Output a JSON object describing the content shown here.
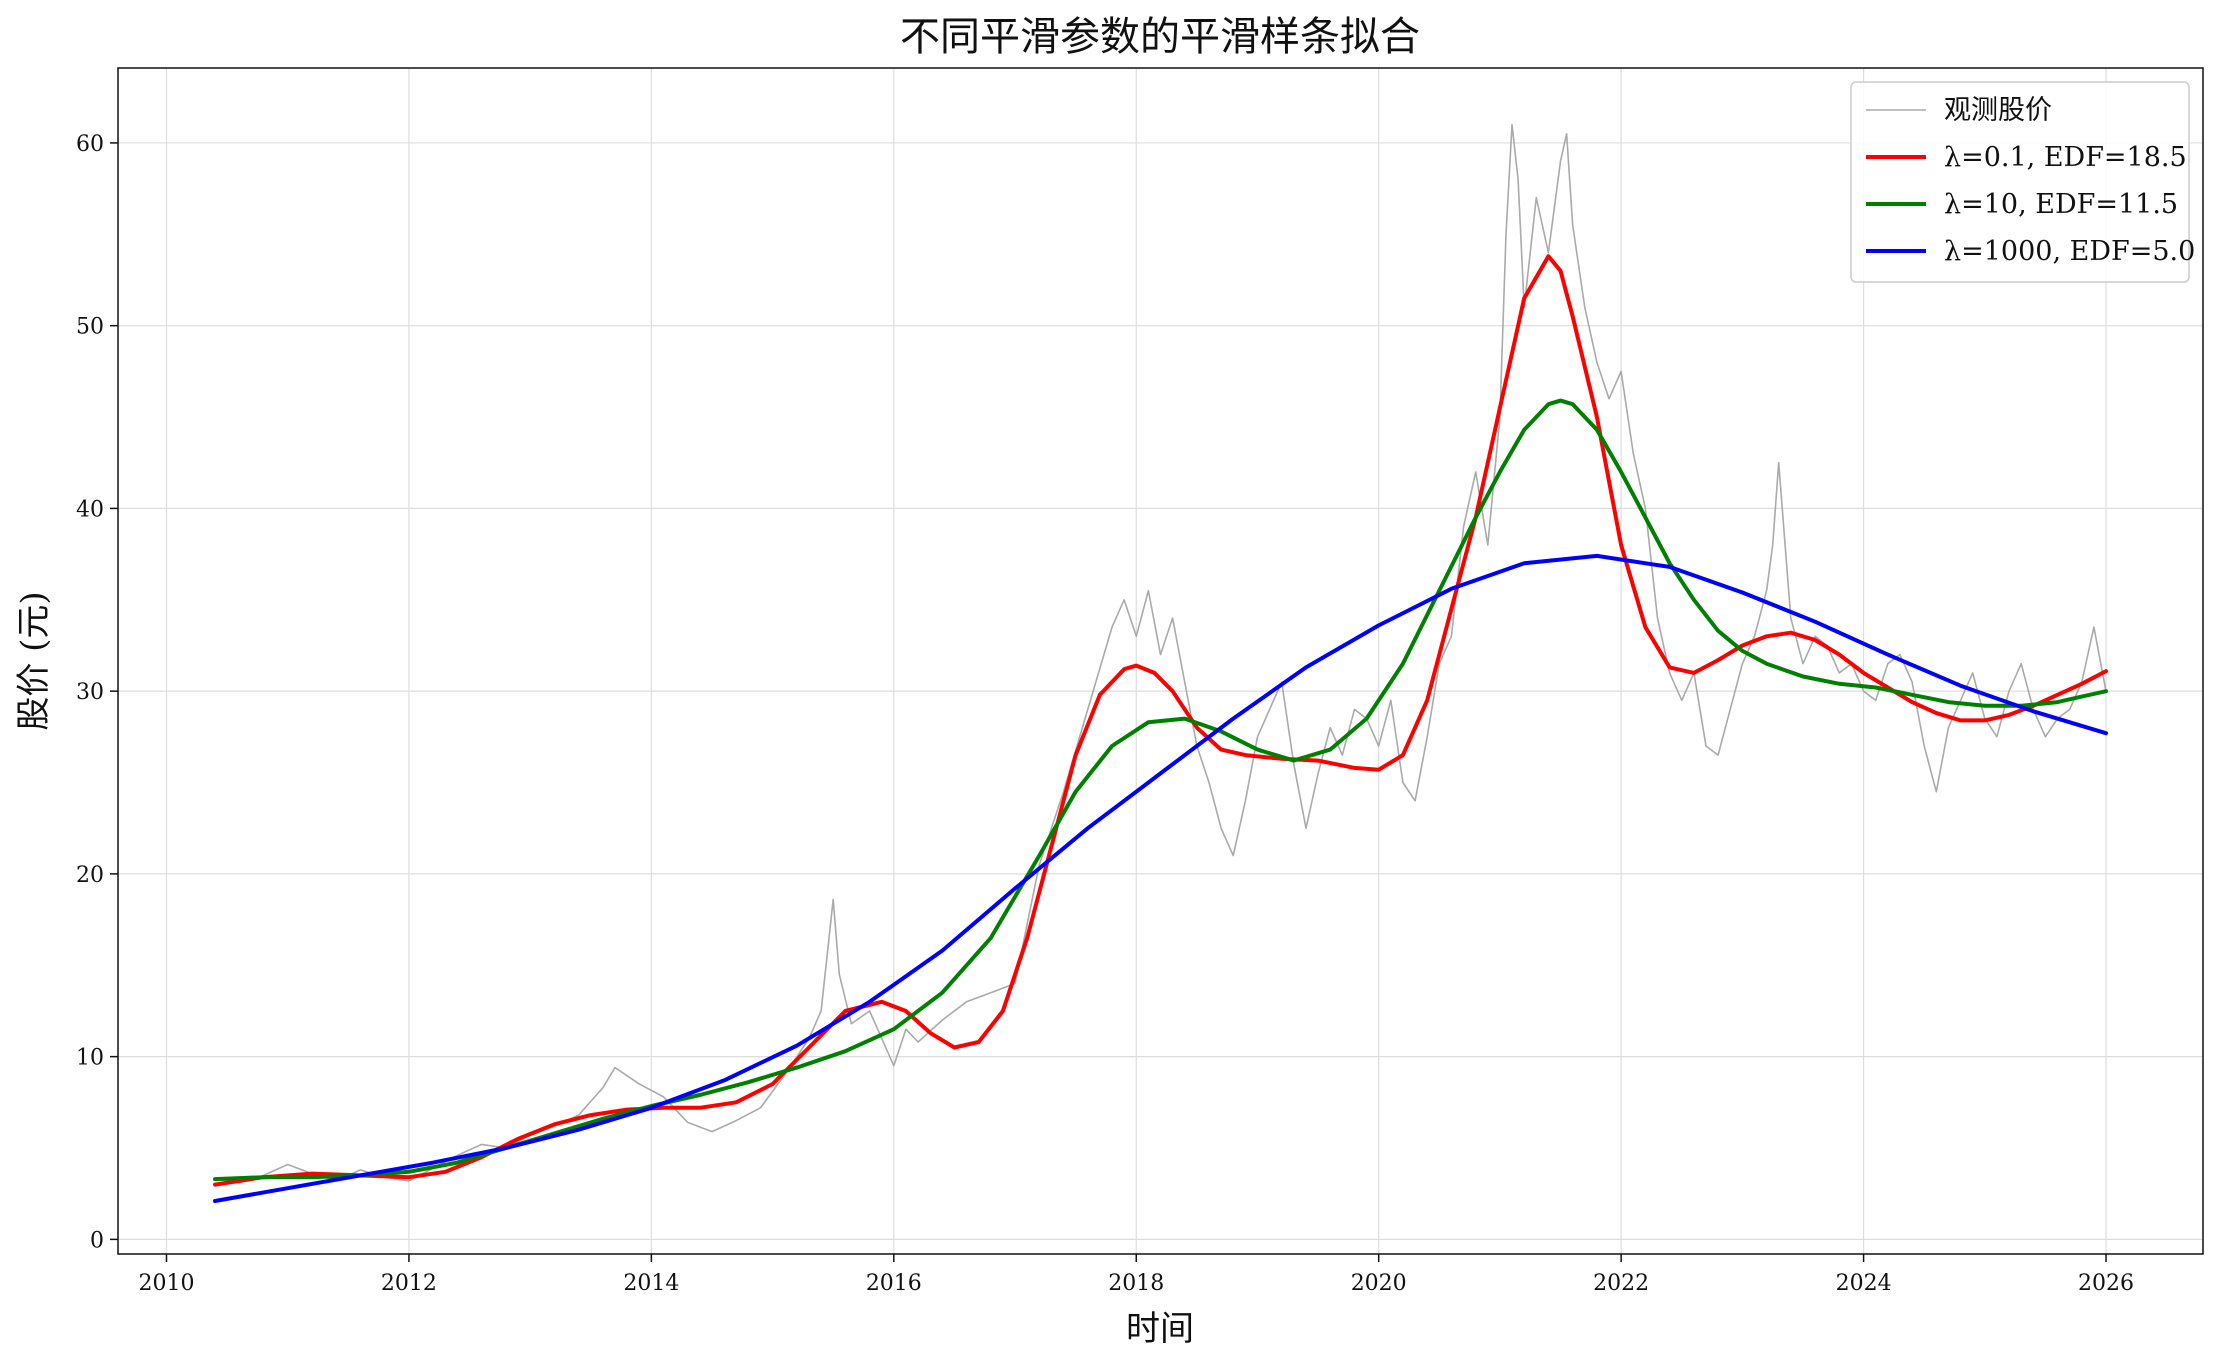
{
  "chart_data": {
    "type": "line",
    "title": "不同平滑参数的平滑样条拟合",
    "xlabel": "时间",
    "ylabel": "股价 (元)",
    "xlim": [
      2009.6,
      2026.8
    ],
    "ylim": [
      -0.8,
      64.1
    ],
    "x_ticks": [
      2010,
      2012,
      2014,
      2016,
      2018,
      2020,
      2022,
      2024,
      2026
    ],
    "y_ticks": [
      0,
      10,
      20,
      30,
      40,
      50,
      60
    ],
    "grid": true,
    "legend_position": "top-right",
    "series": [
      {
        "name": "观测股价",
        "color": "#aaaaaa",
        "width": 1.6,
        "x": [
          2010.4,
          2010.6,
          2010.8,
          2011.0,
          2011.2,
          2011.4,
          2011.6,
          2011.8,
          2012.0,
          2012.2,
          2012.4,
          2012.6,
          2012.8,
          2013.0,
          2013.2,
          2013.4,
          2013.6,
          2013.7,
          2013.9,
          2014.1,
          2014.3,
          2014.5,
          2014.7,
          2014.9,
          2015.1,
          2015.3,
          2015.4,
          2015.5,
          2015.55,
          2015.65,
          2015.8,
          2016.0,
          2016.1,
          2016.2,
          2016.4,
          2016.6,
          2016.8,
          2017.0,
          2017.2,
          2017.4,
          2017.6,
          2017.8,
          2017.9,
          2018.0,
          2018.1,
          2018.2,
          2018.3,
          2018.4,
          2018.5,
          2018.6,
          2018.7,
          2018.8,
          2018.9,
          2019.0,
          2019.1,
          2019.2,
          2019.3,
          2019.4,
          2019.5,
          2019.6,
          2019.7,
          2019.8,
          2019.9,
          2020.0,
          2020.1,
          2020.2,
          2020.3,
          2020.4,
          2020.5,
          2020.6,
          2020.7,
          2020.8,
          2020.9,
          2021.0,
          2021.05,
          2021.1,
          2021.15,
          2021.2,
          2021.3,
          2021.4,
          2021.5,
          2021.55,
          2021.6,
          2021.7,
          2021.8,
          2021.9,
          2022.0,
          2022.1,
          2022.2,
          2022.3,
          2022.4,
          2022.5,
          2022.6,
          2022.7,
          2022.8,
          2022.9,
          2023.0,
          2023.1,
          2023.2,
          2023.25,
          2023.3,
          2023.4,
          2023.5,
          2023.6,
          2023.7,
          2023.8,
          2023.9,
          2024.0,
          2024.1,
          2024.2,
          2024.3,
          2024.4,
          2024.5,
          2024.6,
          2024.7,
          2024.8,
          2024.9,
          2025.0,
          2025.1,
          2025.2,
          2025.3,
          2025.4,
          2025.5,
          2025.6,
          2025.7,
          2025.8,
          2025.9,
          2026.0
        ],
        "y": [
          3.3,
          3.1,
          3.5,
          4.1,
          3.6,
          3.2,
          3.8,
          3.4,
          3.2,
          3.9,
          4.6,
          5.2,
          5.0,
          5.7,
          6.2,
          6.8,
          8.3,
          9.4,
          8.5,
          7.8,
          6.4,
          5.9,
          6.5,
          7.2,
          9.0,
          11.0,
          12.5,
          18.6,
          14.5,
          11.8,
          12.5,
          9.5,
          11.5,
          10.8,
          12.0,
          13.0,
          13.5,
          14.0,
          20.5,
          24.5,
          29.0,
          33.5,
          35.0,
          33.0,
          35.5,
          32.0,
          34.0,
          30.5,
          27.0,
          25.0,
          22.5,
          21.0,
          24.0,
          27.5,
          29.0,
          30.5,
          26.0,
          22.5,
          25.5,
          28.0,
          26.5,
          29.0,
          28.5,
          27.0,
          29.5,
          25.0,
          24.0,
          27.5,
          31.5,
          33.0,
          39.0,
          42.0,
          38.0,
          45.0,
          55.0,
          61.0,
          58.0,
          51.0,
          57.0,
          54.0,
          59.0,
          60.5,
          55.5,
          51.0,
          48.0,
          46.0,
          47.5,
          43.0,
          40.0,
          34.0,
          31.0,
          29.5,
          31.0,
          27.0,
          26.5,
          29.0,
          31.5,
          33.0,
          35.5,
          38.0,
          42.5,
          34.0,
          31.5,
          33.0,
          32.5,
          31.0,
          31.5,
          30.0,
          29.5,
          31.5,
          32.0,
          30.5,
          27.0,
          24.5,
          28.0,
          29.5,
          31.0,
          28.5,
          27.5,
          30.0,
          31.5,
          29.0,
          27.5,
          28.5,
          29.0,
          30.5,
          33.5,
          30.0
        ]
      },
      {
        "name": "λ=0.1, EDF=18.5",
        "color": "#ff0000",
        "width": 4,
        "x": [
          2010.4,
          2010.8,
          2011.2,
          2011.6,
          2012.0,
          2012.3,
          2012.6,
          2012.9,
          2013.2,
          2013.5,
          2013.8,
          2014.1,
          2014.4,
          2014.7,
          2015.0,
          2015.3,
          2015.6,
          2015.9,
          2016.1,
          2016.3,
          2016.5,
          2016.7,
          2016.9,
          2017.1,
          2017.3,
          2017.5,
          2017.7,
          2017.9,
          2018.0,
          2018.15,
          2018.3,
          2018.5,
          2018.7,
          2018.9,
          2019.2,
          2019.5,
          2019.8,
          2020.0,
          2020.2,
          2020.4,
          2020.6,
          2020.8,
          2021.0,
          2021.2,
          2021.4,
          2021.5,
          2021.6,
          2021.8,
          2022.0,
          2022.2,
          2022.4,
          2022.6,
          2022.8,
          2023.0,
          2023.2,
          2023.4,
          2023.6,
          2023.8,
          2024.0,
          2024.2,
          2024.4,
          2024.6,
          2024.8,
          2025.0,
          2025.2,
          2025.4,
          2025.6,
          2025.8,
          2026.0
        ],
        "y": [
          3.0,
          3.4,
          3.6,
          3.5,
          3.4,
          3.7,
          4.5,
          5.5,
          6.3,
          6.8,
          7.1,
          7.2,
          7.2,
          7.5,
          8.5,
          10.5,
          12.5,
          13.0,
          12.5,
          11.3,
          10.5,
          10.8,
          12.5,
          16.5,
          21.5,
          26.5,
          29.8,
          31.2,
          31.4,
          31.0,
          30.0,
          28.0,
          26.8,
          26.5,
          26.3,
          26.2,
          25.8,
          25.7,
          26.5,
          29.5,
          34.5,
          39.5,
          45.5,
          51.5,
          53.8,
          53.0,
          50.5,
          45.0,
          38.0,
          33.5,
          31.3,
          31.0,
          31.7,
          32.5,
          33.0,
          33.2,
          32.8,
          32.0,
          31.0,
          30.2,
          29.4,
          28.8,
          28.4,
          28.4,
          28.7,
          29.2,
          29.8,
          30.4,
          31.1
        ]
      },
      {
        "name": "λ=10, EDF=11.5",
        "color": "#008000",
        "width": 4,
        "x": [
          2010.4,
          2010.8,
          2011.2,
          2011.6,
          2012.0,
          2012.4,
          2012.8,
          2013.2,
          2013.6,
          2014.0,
          2014.4,
          2014.8,
          2015.2,
          2015.6,
          2016.0,
          2016.4,
          2016.8,
          2017.2,
          2017.5,
          2017.8,
          2018.1,
          2018.4,
          2018.7,
          2019.0,
          2019.3,
          2019.6,
          2019.9,
          2020.2,
          2020.5,
          2020.8,
          2021.0,
          2021.2,
          2021.4,
          2021.5,
          2021.6,
          2021.8,
          2022.0,
          2022.2,
          2022.4,
          2022.6,
          2022.8,
          2023.0,
          2023.2,
          2023.5,
          2023.8,
          2024.1,
          2024.4,
          2024.7,
          2025.0,
          2025.3,
          2025.6,
          2025.8,
          2026.0
        ],
        "y": [
          3.3,
          3.4,
          3.4,
          3.5,
          3.7,
          4.2,
          5.0,
          5.8,
          6.6,
          7.3,
          7.9,
          8.6,
          9.4,
          10.3,
          11.5,
          13.5,
          16.5,
          21.0,
          24.5,
          27.0,
          28.3,
          28.5,
          27.8,
          26.8,
          26.2,
          26.8,
          28.5,
          31.5,
          35.5,
          39.5,
          42.0,
          44.3,
          45.7,
          45.9,
          45.7,
          44.3,
          42.0,
          39.5,
          37.0,
          35.0,
          33.3,
          32.2,
          31.5,
          30.8,
          30.4,
          30.2,
          29.8,
          29.4,
          29.2,
          29.2,
          29.4,
          29.7,
          30.0
        ]
      },
      {
        "name": "λ=1000, EDF=5.0",
        "color": "#0000ff",
        "width": 4,
        "x": [
          2010.4,
          2011.0,
          2011.6,
          2012.2,
          2012.8,
          2013.4,
          2014.0,
          2014.6,
          2015.2,
          2015.8,
          2016.4,
          2017.0,
          2017.6,
          2018.2,
          2018.8,
          2019.4,
          2020.0,
          2020.6,
          2021.2,
          2021.8,
          2022.4,
          2023.0,
          2023.6,
          2024.2,
          2024.8,
          2025.4,
          2026.0
        ],
        "y": [
          2.1,
          2.8,
          3.5,
          4.2,
          5.0,
          6.0,
          7.2,
          8.7,
          10.6,
          13.0,
          15.8,
          19.2,
          22.5,
          25.5,
          28.5,
          31.3,
          33.6,
          35.6,
          37.0,
          37.4,
          36.8,
          35.4,
          33.8,
          32.0,
          30.3,
          28.9,
          27.7
        ]
      }
    ]
  }
}
